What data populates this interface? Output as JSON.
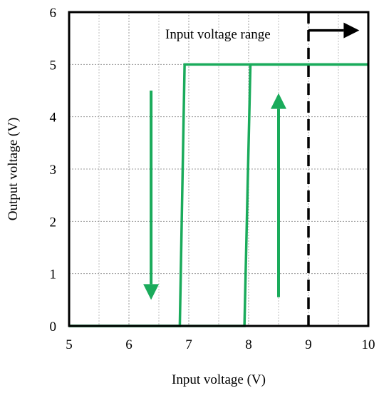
{
  "chart_data": {
    "type": "line",
    "title": "",
    "xlabel": "Input voltage (V)",
    "ylabel": "Output voltage (V)",
    "xlim": [
      5,
      10
    ],
    "ylim": [
      0,
      6
    ],
    "x_ticks": [
      "5",
      "6",
      "7",
      "8",
      "9",
      "10"
    ],
    "y_ticks": [
      "0",
      "1",
      "2",
      "3",
      "4",
      "5",
      "6"
    ],
    "grid": true,
    "series": [
      {
        "x": [
          5,
          6.85,
          6.93,
          10
        ],
        "y": [
          0,
          0,
          5,
          5
        ],
        "color": "#1aab5b"
      },
      {
        "x": [
          5,
          7.93,
          8.03,
          10
        ],
        "y": [
          0,
          0,
          5,
          5
        ],
        "color": "#1aab5b"
      }
    ],
    "threshold_line": {
      "x": 9,
      "style": "dashed",
      "color": "#000000"
    },
    "annotation": {
      "text": "Input voltage range"
    },
    "arrows": [
      {
        "x": 6.37,
        "y_from": 4.5,
        "y_to": 0.5,
        "color": "#1aab5b"
      },
      {
        "x": 8.5,
        "y_from": 0.55,
        "y_to": 4.45,
        "color": "#1aab5b"
      },
      {
        "y": 5.65,
        "x_from": 9,
        "x_to": 9.85,
        "color": "#000000"
      }
    ]
  }
}
